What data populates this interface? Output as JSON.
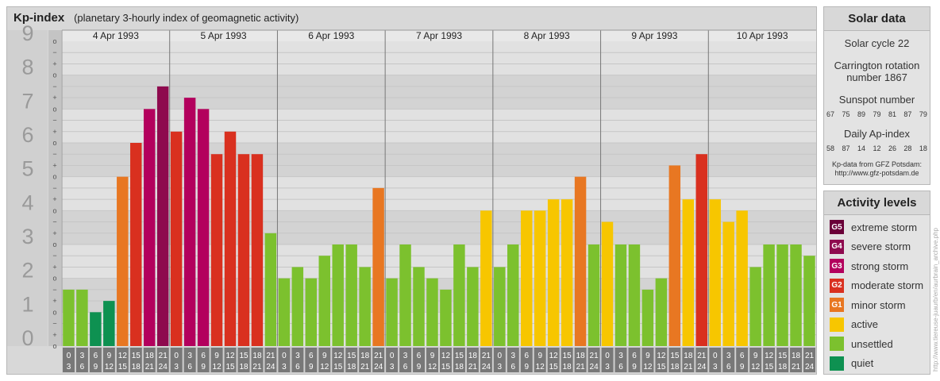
{
  "header": {
    "title": "Kp-index",
    "subtitle": "(planetary 3-hourly index of geomagnetic activity)"
  },
  "chart_data": {
    "type": "bar",
    "title": "Kp-index",
    "subtitle": "(planetary 3-hourly index of geomagnetic activity)",
    "ylim": [
      0,
      9
    ],
    "y_ticks": [
      "0",
      "1",
      "2",
      "3",
      "4",
      "5",
      "6",
      "7",
      "8",
      "9"
    ],
    "minor_ticks": [
      "o",
      "+",
      "−"
    ],
    "days": [
      "4 Apr 1993",
      "5 Apr 1993",
      "6 Apr 1993",
      "7 Apr 1993",
      "8 Apr 1993",
      "9 Apr 1993",
      "10 Apr 1993"
    ],
    "hour_labels": [
      [
        "0",
        "3"
      ],
      [
        "3",
        "6"
      ],
      [
        "6",
        "9"
      ],
      [
        "9",
        "12"
      ],
      [
        "12",
        "15"
      ],
      [
        "15",
        "18"
      ],
      [
        "18",
        "21"
      ],
      [
        "21",
        "24"
      ]
    ],
    "values": [
      [
        1.667,
        1.667,
        1.0,
        1.333,
        5.0,
        6.0,
        7.0,
        7.667
      ],
      [
        6.333,
        7.333,
        7.0,
        5.667,
        6.333,
        5.667,
        5.667,
        3.333
      ],
      [
        2.0,
        2.333,
        2.0,
        2.667,
        3.0,
        3.0,
        2.333,
        4.667
      ],
      [
        2.0,
        3.0,
        2.333,
        2.0,
        1.667,
        3.0,
        2.333,
        4.0
      ],
      [
        2.333,
        3.0,
        4.0,
        4.0,
        4.333,
        4.333,
        5.0,
        3.0
      ],
      [
        3.667,
        3.0,
        3.0,
        1.667,
        2.0,
        5.333,
        4.333,
        5.667
      ],
      [
        4.333,
        3.667,
        4.0,
        2.333,
        3.0,
        3.0,
        3.0,
        2.667
      ]
    ],
    "grid": true
  },
  "solar": {
    "title": "Solar data",
    "cycle": "Solar cycle 22",
    "carrington_1": "Carrington rotation",
    "carrington_2": "number 1867",
    "sunspot_title": "Sunspot number",
    "sunspots": [
      "67",
      "75",
      "89",
      "79",
      "81",
      "87",
      "79"
    ],
    "ap_title": "Daily Ap-index",
    "ap": [
      "58",
      "87",
      "14",
      "12",
      "26",
      "28",
      "18"
    ],
    "credit_1": "Kp-data from GFZ Potsdam:",
    "credit_2": "http://www.gfz-potsdam.de"
  },
  "activity": {
    "title": "Activity levels",
    "levels": [
      {
        "code": "G5",
        "label": "extreme storm",
        "color": "#6a0038"
      },
      {
        "code": "G4",
        "label": "severe storm",
        "color": "#8e0a4e"
      },
      {
        "code": "G3",
        "label": "strong storm",
        "color": "#b3005d"
      },
      {
        "code": "G2",
        "label": "moderate storm",
        "color": "#d9301f"
      },
      {
        "code": "G1",
        "label": "minor storm",
        "color": "#e87722"
      },
      {
        "code": "",
        "label": "active",
        "color": "#f7c600"
      },
      {
        "code": "",
        "label": "unsettled",
        "color": "#7cc12e"
      },
      {
        "code": "",
        "label": "quiet",
        "color": "#0e9151"
      }
    ]
  },
  "vertical_url": "http://www.tiereuse-juaurb/en/aurbrain_archive.php"
}
